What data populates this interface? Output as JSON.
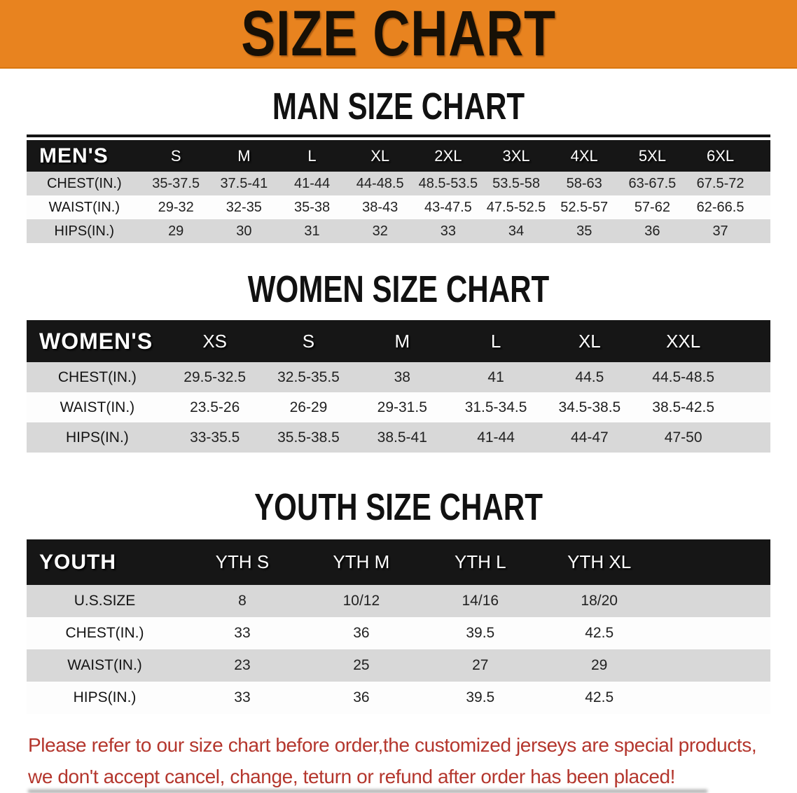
{
  "banner": {
    "title": "SIZE CHART"
  },
  "sections": [
    {
      "heading": "MAN SIZE CHART",
      "table": {
        "header": {
          "label": "MEN'S",
          "columns": [
            "S",
            "M",
            "L",
            "XL",
            "2XL",
            "3XL",
            "4XL",
            "5XL",
            "6XL"
          ]
        },
        "rows": [
          {
            "label": "CHEST(IN.)",
            "values": [
              "35-37.5",
              "37.5-41",
              "41-44",
              "44-48.5",
              "48.5-53.5",
              "53.5-58",
              "58-63",
              "63-67.5",
              "67.5-72"
            ]
          },
          {
            "label": "WAIST(IN.)",
            "values": [
              "29-32",
              "32-35",
              "35-38",
              "38-43",
              "43-47.5",
              "47.5-52.5",
              "52.5-57",
              "57-62",
              "62-66.5"
            ]
          },
          {
            "label": "HIPS(IN.)",
            "values": [
              "29",
              "30",
              "31",
              "32",
              "33",
              "34",
              "35",
              "36",
              "37"
            ]
          }
        ]
      }
    },
    {
      "heading": "WOMEN SIZE CHART",
      "table": {
        "header": {
          "label": "WOMEN'S",
          "columns": [
            "XS",
            "S",
            "M",
            "L",
            "XL",
            "XXL"
          ]
        },
        "rows": [
          {
            "label": "CHEST(IN.)",
            "values": [
              "29.5-32.5",
              "32.5-35.5",
              "38",
              "41",
              "44.5",
              "44.5-48.5"
            ]
          },
          {
            "label": "WAIST(IN.)",
            "values": [
              "23.5-26",
              "26-29",
              "29-31.5",
              "31.5-34.5",
              "34.5-38.5",
              "38.5-42.5"
            ]
          },
          {
            "label": "HIPS(IN.)",
            "values": [
              "33-35.5",
              "35.5-38.5",
              "38.5-41",
              "41-44",
              "44-47",
              "47-50"
            ]
          }
        ]
      }
    },
    {
      "heading": "YOUTH SIZE CHART",
      "table": {
        "header": {
          "label": "YOUTH",
          "columns": [
            "YTH S",
            "YTH M",
            "YTH L",
            "YTH XL"
          ]
        },
        "rows": [
          {
            "label": "U.S.SIZE",
            "values": [
              "8",
              "10/12",
              "14/16",
              "18/20"
            ]
          },
          {
            "label": "CHEST(IN.)",
            "values": [
              "33",
              "36",
              "39.5",
              "42.5"
            ]
          },
          {
            "label": "WAIST(IN.)",
            "values": [
              "23",
              "25",
              "27",
              "29"
            ]
          },
          {
            "label": "HIPS(IN.)",
            "values": [
              "33",
              "36",
              "39.5",
              "42.5"
            ]
          }
        ]
      }
    }
  ],
  "footer": {
    "line1": "Please refer to our size chart before order,the customized jerseys are special products,",
    "line2": "we don't accept cancel, change, teturn or refund after order has been placed!"
  },
  "colors": {
    "banner_bg": "#E8831F",
    "band_bg": "#161616",
    "row_alt": "#D8D8D8",
    "footer_red": "#B4362D"
  }
}
